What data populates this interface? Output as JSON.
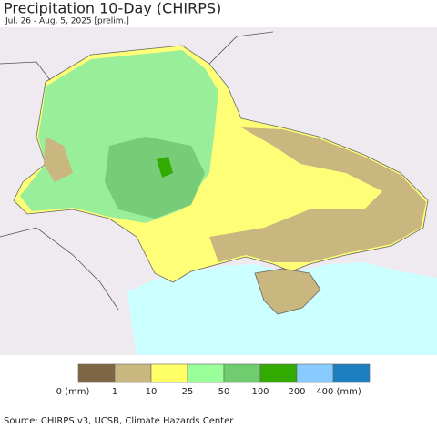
{
  "header": {
    "title": "Precipitation 10-Day (CHIRPS)",
    "subtitle": "Jul. 26 - Aug. 5, 2025 [prelim.]"
  },
  "legend": {
    "colors": [
      "#7f6645",
      "#c9b77f",
      "#ffff66",
      "#99ff99",
      "#6fcc6f",
      "#33aa00",
      "#88ccff",
      "#1e7fc0"
    ],
    "labels": [
      "0 (mm)",
      "1",
      "10",
      "25",
      "50",
      "100",
      "200",
      "400 (mm)"
    ]
  },
  "footer": {
    "source": "Source: CHIRPS v3, UCSB, Climate Hazards Center"
  }
}
